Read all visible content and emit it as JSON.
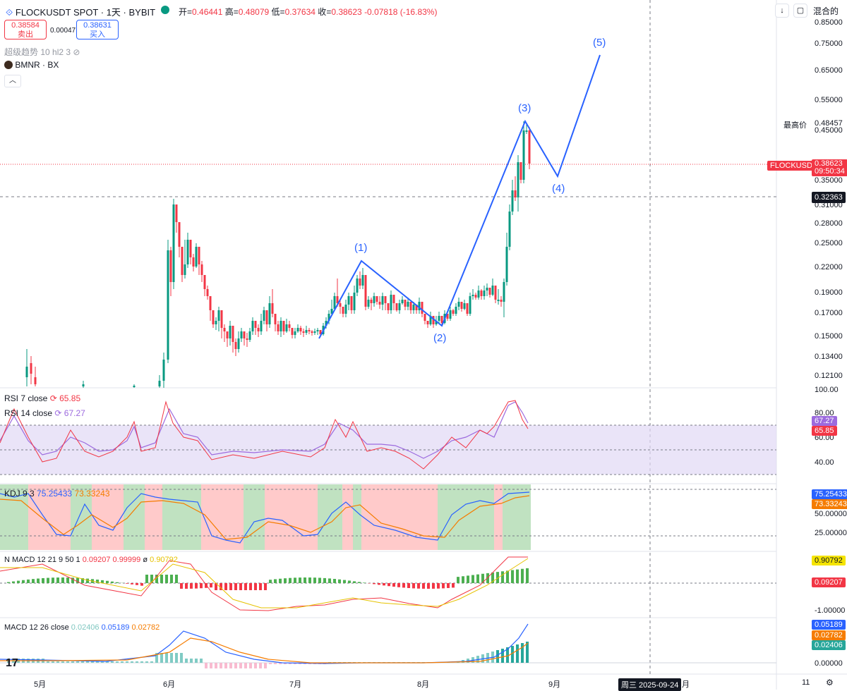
{
  "header": {
    "symbol_title": "FLOCKUSDT SPOT · 1天 · BYBIT",
    "open_label": "开",
    "open": "0.46441",
    "high_label": "高",
    "high": "0.48079",
    "low_label": "低",
    "low": "0.37634",
    "close_label": "收",
    "close": "0.38623",
    "change": "-0.07818 (-16.83%)",
    "mode_label": "混合的",
    "down_arrow_icon": "arrow-down-icon",
    "fullscreen_icon": "fullscreen-icon"
  },
  "order": {
    "sell_price": "0.38584",
    "sell_label": "卖出",
    "spread": "0.00047",
    "buy_price": "0.38631",
    "buy_label": "买入"
  },
  "indicators": {
    "supertrend": "超级趋势 10 hl2 3",
    "compare_symbol": "BMNR · BX",
    "collapse_icon": "chevron-up-icon",
    "rsi7_label": "RSI 7 close",
    "rsi7_value": "65.85",
    "rsi14_label": "RSI 14 close",
    "rsi14_value": "67.27",
    "kdj_label": "KDJ 9 3",
    "kdj_k": "75.25433",
    "kdj_d": "73.33243",
    "nmacd_label": "N MACD 12 21 9 50 1",
    "nmacd_a": "0.09207",
    "nmacd_b": "0.99999",
    "nmacd_c_prefix": "ø",
    "nmacd_c": "0.90792",
    "macd_label": "MACD 12 26 close",
    "macd_hist": "0.02406",
    "macd_line": "0.05189",
    "macd_signal": "0.02782"
  },
  "price_axis": {
    "ticks": [
      "0.85000",
      "0.75000",
      "0.65000",
      "0.55000",
      "0.45000",
      "0.35000",
      "0.31000",
      "0.28000",
      "0.25000",
      "0.22000",
      "0.19000",
      "0.17000",
      "0.15000",
      "0.13400",
      "0.12100"
    ],
    "high_label": "最高价",
    "high_value": "0.48457",
    "symbol_tag": "FLOCKUSDT",
    "last_price": "0.38623",
    "countdown": "09:50:34",
    "crosshair_price": "0.32363"
  },
  "rsi_axis": {
    "ticks": [
      "100.00",
      "80.00",
      "60.00",
      "40.00"
    ],
    "tag_a": "67.27",
    "tag_b": "65.85"
  },
  "kdj_axis": {
    "ticks": [
      "50.00000",
      "25.00000"
    ],
    "tag_a": "75.25433",
    "tag_b": "73.33243"
  },
  "nmacd_axis": {
    "ticks": [
      "-1.00000"
    ],
    "tag_a": "0.90792",
    "tag_b": "0.09207"
  },
  "macd_axis": {
    "ticks": [
      "0.00000"
    ],
    "tag_a": "0.05189",
    "tag_b": "0.02782",
    "tag_c": "0.02406"
  },
  "time_axis": {
    "labels": [
      "5月",
      "6月",
      "7月",
      "8月",
      "9月",
      "11"
    ],
    "crosshair_date": "周三 2025-09-24",
    "partial_label": "月"
  },
  "waves": [
    "(1)",
    "(2)",
    "(3)",
    "(4)",
    "(5)"
  ],
  "colors": {
    "up": "#089981",
    "down": "#f23645",
    "wave": "#2962ff",
    "rsi_fill": "#e1d9f5"
  }
}
